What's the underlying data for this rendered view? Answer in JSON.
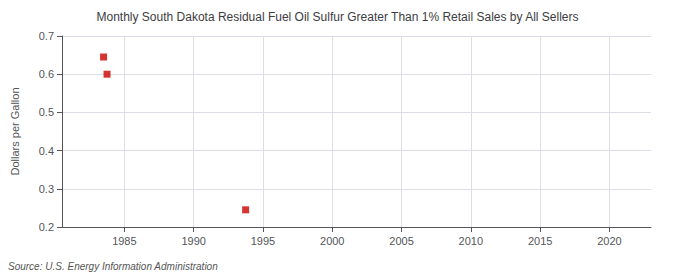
{
  "chart_data": {
    "type": "scatter",
    "title": "Monthly South Dakota Residual Fuel Oil Sulfur Greater Than 1% Retail Sales by All Sellers",
    "ylabel": "Dollars per Gallon",
    "source": "Source: U.S. Energy Information Administration",
    "x": [
      1983.5,
      1983.75,
      1993.75
    ],
    "values": [
      0.645,
      0.6,
      0.245
    ],
    "color": "#cc0000",
    "marker": "square",
    "xlim": [
      1980.5,
      2023
    ],
    "xticks": [
      1985,
      1990,
      1995,
      2000,
      2005,
      2010,
      2015,
      2020
    ],
    "ylim": [
      0.2,
      0.7
    ],
    "yticks": [
      0.2,
      0.3,
      0.4,
      0.5,
      0.6,
      0.7
    ],
    "grid": true
  }
}
